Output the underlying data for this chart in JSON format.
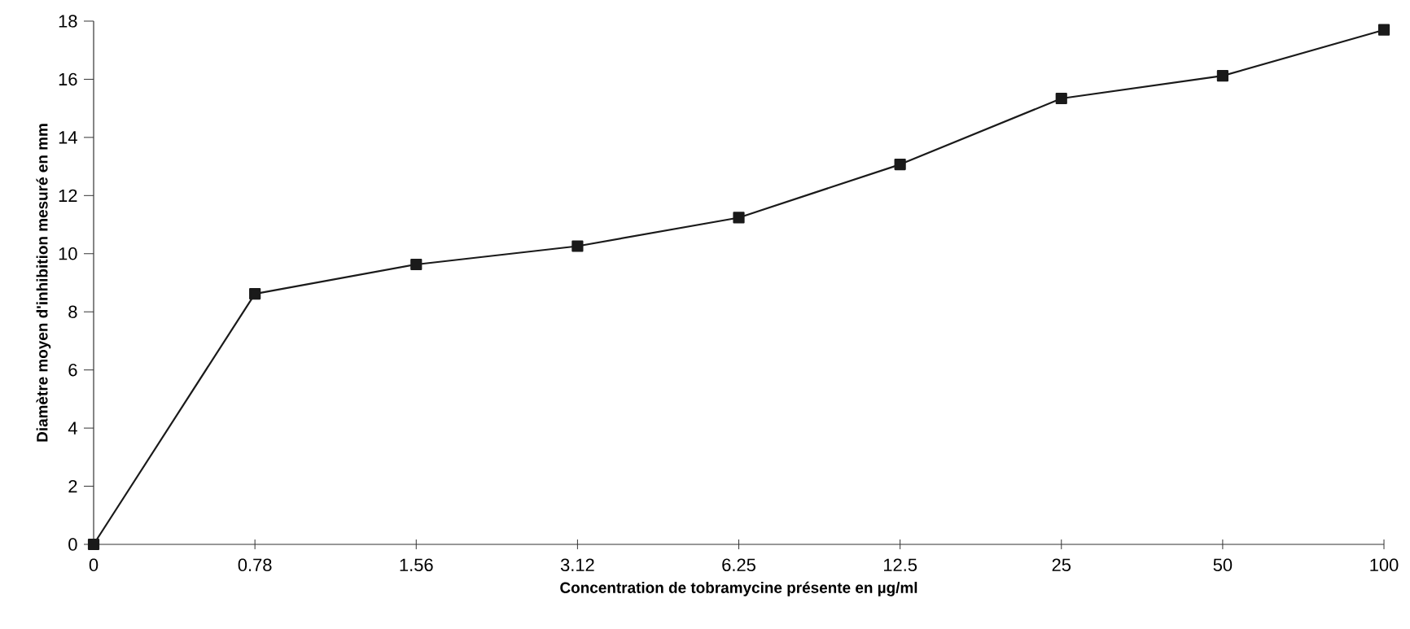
{
  "chart_data": {
    "type": "line",
    "xlabel": "Concentration de tobramycine présente en µg/ml",
    "ylabel": "Diamètre moyen d'inhibition mesuré en mm",
    "categories": [
      "0",
      "0.78",
      "1.56",
      "3.12",
      "6.25",
      "12.5",
      "25",
      "50",
      "100"
    ],
    "series": [
      {
        "color": "#1a1a1a",
        "values": [
          0,
          8.62,
          9.63,
          10.26,
          11.24,
          13.07,
          15.34,
          16.12,
          17.7
        ]
      }
    ],
    "ylim": [
      0,
      18
    ],
    "yticks": [
      0,
      2,
      4,
      6,
      8,
      10,
      12,
      14,
      16,
      18
    ],
    "grid": false,
    "legend": false,
    "marker": "square",
    "line_style": "solid"
  }
}
